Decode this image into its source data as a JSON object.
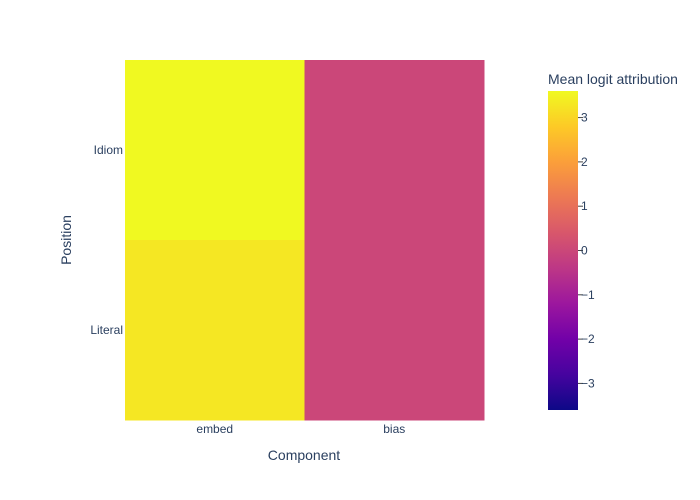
{
  "chart_data": {
    "type": "heatmap",
    "title": "",
    "xlabel": "Component",
    "ylabel": "Position",
    "x_categories": [
      "embed",
      "bias"
    ],
    "y_categories": [
      "Idiom",
      "Literal"
    ],
    "z": [
      [
        3.6,
        0.0
      ],
      [
        3.3,
        0.0
      ]
    ],
    "colorbar": {
      "title": "Mean logit attribution",
      "zmin": -3.6,
      "zmax": 3.6,
      "ticks": [
        3,
        2,
        1,
        0,
        -1,
        -2,
        -3
      ],
      "tick_labels": [
        "3",
        "2",
        "1",
        "0",
        "−1",
        "−2",
        "−3"
      ]
    },
    "colorscale": [
      "#0d0887",
      "#46039f",
      "#7201a8",
      "#9c179e",
      "#bd3786",
      "#d8576b",
      "#ed7953",
      "#fb9f3a",
      "#fdca26",
      "#f0f921"
    ]
  }
}
